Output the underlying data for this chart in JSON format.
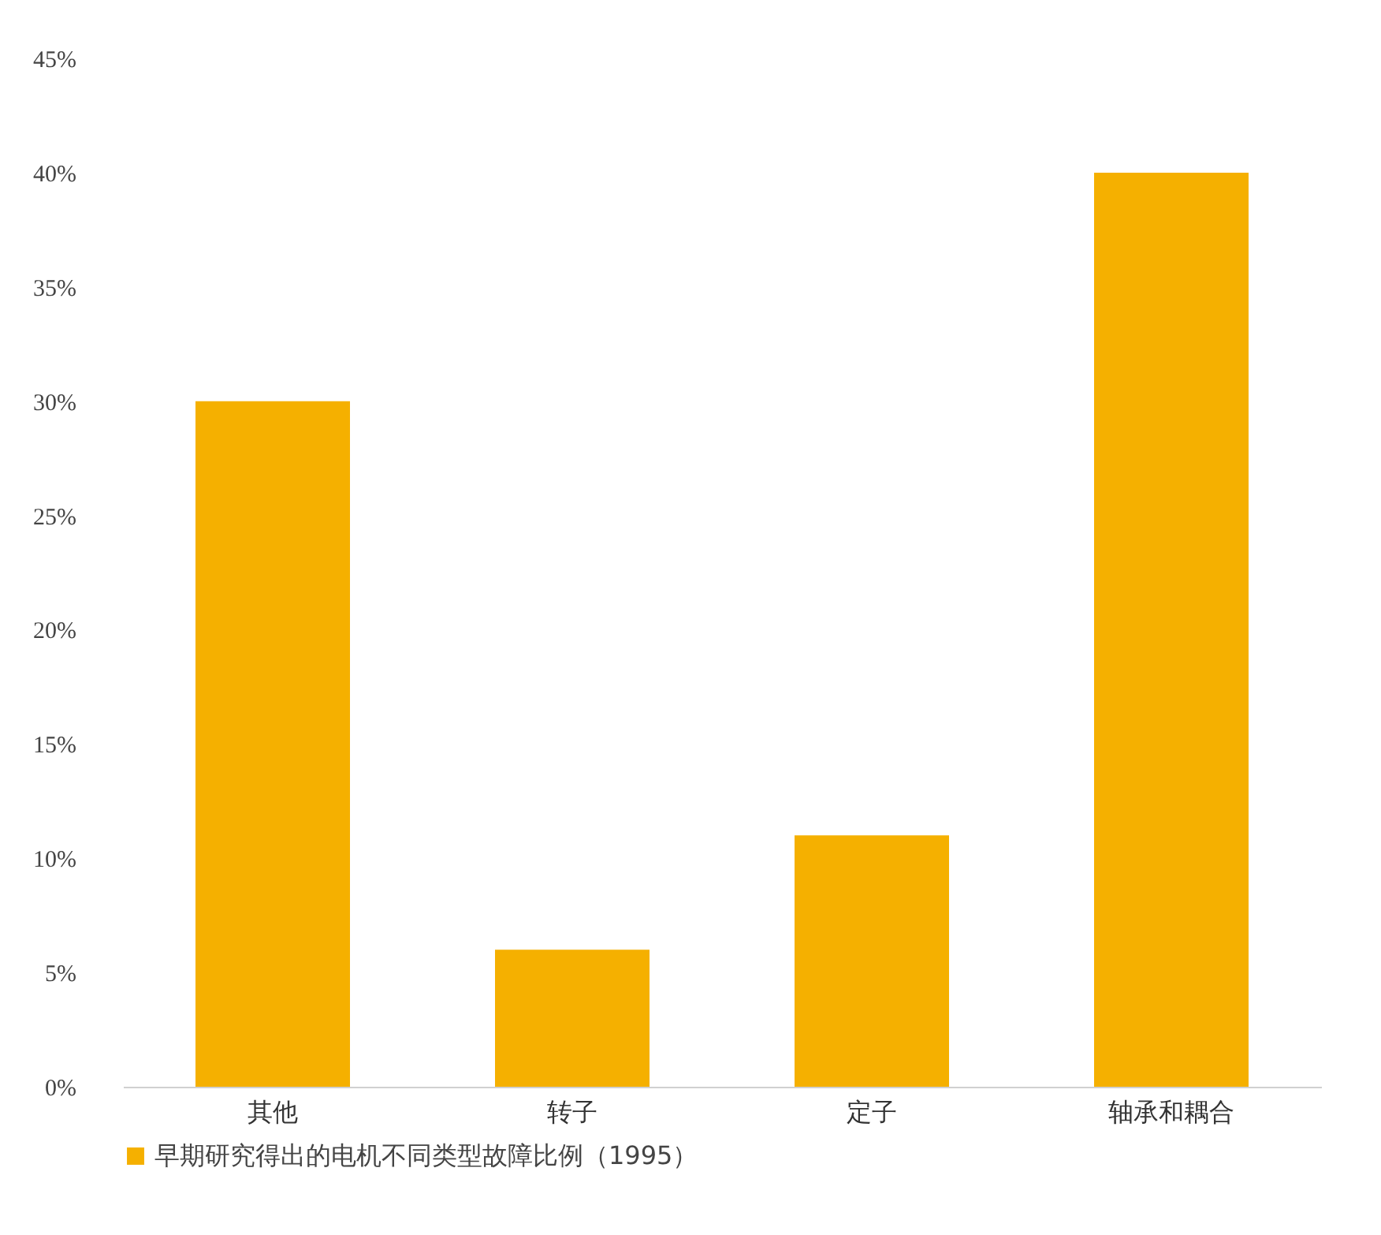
{
  "chart_data": {
    "type": "bar",
    "categories": [
      "其他",
      "转子",
      "定子",
      "轴承和耦合"
    ],
    "series": [
      {
        "name": "早期研究得出的电机不同类型故障比例（1995）",
        "color": "#f5b000",
        "values": [
          30,
          6,
          11,
          40
        ]
      }
    ],
    "ylim": [
      0,
      45
    ],
    "yticks": [
      {
        "value": 0,
        "label": "0%"
      },
      {
        "value": 5,
        "label": "5%"
      },
      {
        "value": 10,
        "label": "10%"
      },
      {
        "value": 15,
        "label": "15%"
      },
      {
        "value": 20,
        "label": "20%"
      },
      {
        "value": 25,
        "label": "25%"
      },
      {
        "value": 30,
        "label": "30%"
      },
      {
        "value": 35,
        "label": "35%"
      },
      {
        "value": 40,
        "label": "40%"
      },
      {
        "value": 45,
        "label": "45%"
      }
    ],
    "grid": false,
    "legend": "bottom"
  }
}
